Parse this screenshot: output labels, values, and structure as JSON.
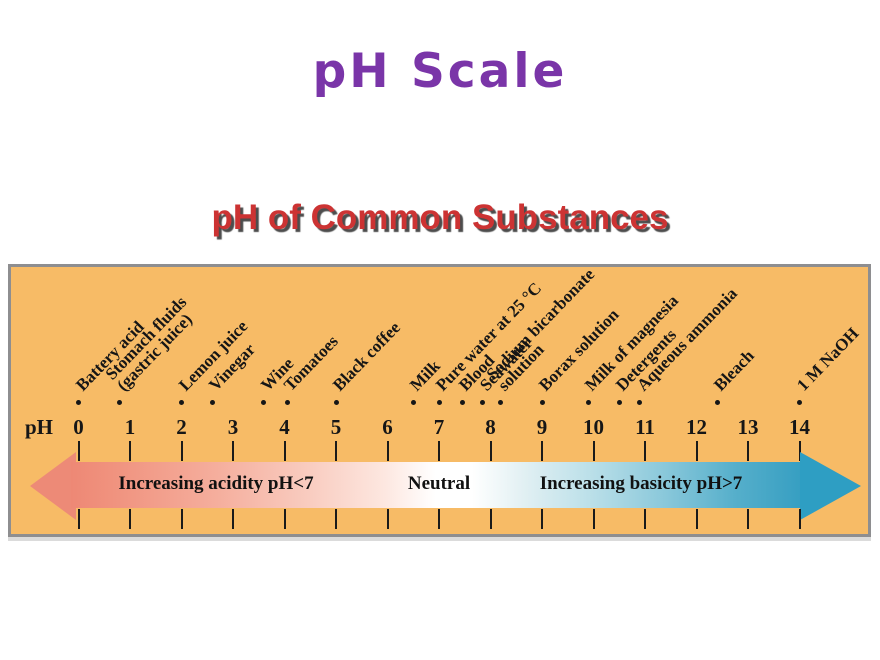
{
  "title": "pH Scale",
  "heading": "pH of Common Substances",
  "axis": {
    "label": "pH",
    "min": 0,
    "max": 14,
    "ticks": [
      0,
      1,
      2,
      3,
      4,
      5,
      6,
      7,
      8,
      9,
      10,
      11,
      12,
      13,
      14
    ]
  },
  "substances": [
    {
      "lines": [
        "Battery acid"
      ],
      "ph": 0.0
    },
    {
      "lines": [
        "Stomach fluids",
        "(gastric juice)"
      ],
      "ph": 0.8
    },
    {
      "lines": [
        "Lemon juice"
      ],
      "ph": 2.0
    },
    {
      "lines": [
        "Vinegar"
      ],
      "ph": 2.6
    },
    {
      "lines": [
        "Wine"
      ],
      "ph": 3.6
    },
    {
      "lines": [
        "Tomatoes"
      ],
      "ph": 4.05
    },
    {
      "lines": [
        "Black coffee"
      ],
      "ph": 5.0
    },
    {
      "lines": [
        "Milk"
      ],
      "ph": 6.5
    },
    {
      "lines": [
        "Pure water at 25 °C"
      ],
      "ph": 7.0
    },
    {
      "lines": [
        "Blood"
      ],
      "ph": 7.45
    },
    {
      "lines": [
        "Seawater"
      ],
      "ph": 7.85
    },
    {
      "lines": [
        "Sodium bicarbonate",
        "solution"
      ],
      "ph": 8.2
    },
    {
      "lines": [
        "Borax solution"
      ],
      "ph": 9.0
    },
    {
      "lines": [
        "Milk of magnesia"
      ],
      "ph": 9.9
    },
    {
      "lines": [
        "Detergents"
      ],
      "ph": 10.5
    },
    {
      "lines": [
        "Aqueous ammonia"
      ],
      "ph": 10.9
    },
    {
      "lines": [
        "Bleach"
      ],
      "ph": 12.4
    },
    {
      "lines": [
        "1 M NaOH"
      ],
      "ph": 14.0
    }
  ],
  "arrow": {
    "acid_label": "Increasing acidity pH<7",
    "neutral_label": "Neutral",
    "base_label": "Increasing basicity pH>7"
  },
  "colors": {
    "title_purple": "#7A35A8",
    "heading_red": "#CC3333",
    "heading_shadow": "#4D4D4D",
    "diagram_background": "#F7BB66",
    "diagram_border": "#8E8E90",
    "acid_arrow": "#ED8A77",
    "base_arrow": "#2E9EC3",
    "tick_black": "#1A1A1A"
  }
}
